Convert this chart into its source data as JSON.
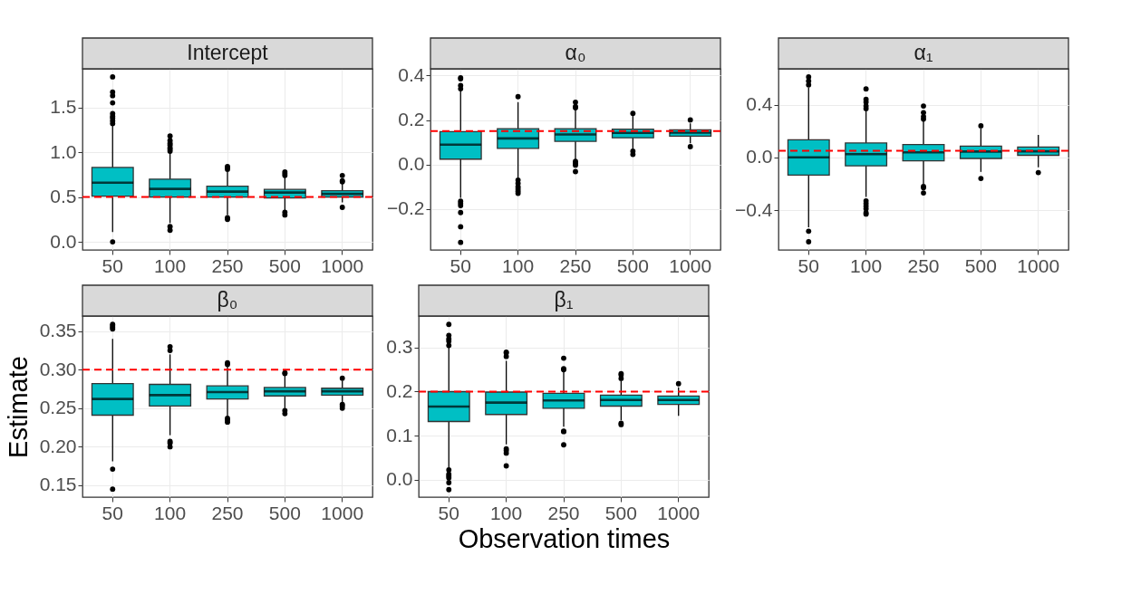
{
  "chart_data": [
    {
      "type": "box",
      "title": "Intercept",
      "categories": [
        "50",
        "100",
        "250",
        "500",
        "1000"
      ],
      "ylim": [
        -0.09,
        1.93
      ],
      "yticks": [
        {
          "value": 0,
          "label": "0.0"
        },
        0.5,
        {
          "value": 1,
          "label": "1.0"
        },
        1.5
      ],
      "grid": true,
      "ref_lines": [
        {
          "axis": "y",
          "value": 0.5,
          "color": "#ff0000",
          "line_style": "dashed"
        }
      ],
      "series": [
        {
          "color": "#00bfc4",
          "boxes": [
            {
              "low": 0.11,
              "q1": 0.51,
              "median": 0.66,
              "q3": 0.83,
              "high": 1.31,
              "outliers": [
                0.0,
                1.32,
                1.35,
                1.38,
                1.4,
                1.43,
                1.55,
                1.63,
                1.67,
                1.84
              ]
            },
            {
              "low": 0.21,
              "q1": 0.5,
              "median": 0.59,
              "q3": 0.7,
              "high": 0.99,
              "outliers": [
                0.13,
                0.17,
                1.01,
                1.03,
                1.05,
                1.08,
                1.1,
                1.13,
                1.18
              ]
            },
            {
              "low": 0.3,
              "q1": 0.5,
              "median": 0.56,
              "q3": 0.62,
              "high": 0.8,
              "outliers": [
                0.25,
                0.27,
                0.81,
                0.83,
                0.84
              ]
            },
            {
              "low": 0.35,
              "q1": 0.49,
              "median": 0.55,
              "q3": 0.585,
              "high": 0.73,
              "outliers": [
                0.3,
                0.33,
                0.74,
                0.76,
                0.78
              ]
            },
            {
              "low": 0.44,
              "q1": 0.5,
              "median": 0.535,
              "q3": 0.57,
              "high": 0.66,
              "outliers": [
                0.385,
                0.67,
                0.68,
                0.74
              ]
            }
          ]
        }
      ]
    },
    {
      "type": "box",
      "title": "α₀",
      "categories": [
        "50",
        "100",
        "250",
        "500",
        "1000"
      ],
      "ylim": [
        -0.384,
        0.43
      ],
      "yticks": [
        {
          "value": -0.2,
          "label": "−0.2"
        },
        {
          "value": 0,
          "label": "0.0"
        },
        0.2,
        0.4
      ],
      "grid": true,
      "ref_lines": [
        {
          "axis": "y",
          "value": 0.15,
          "color": "#ff0000",
          "line_style": "dashed"
        }
      ],
      "series": [
        {
          "color": "#00bfc4",
          "boxes": [
            {
              "low": -0.15,
              "q1": 0.024,
              "median": 0.089,
              "q3": 0.148,
              "high": 0.33,
              "outliers": [
                -0.35,
                -0.28,
                -0.216,
                -0.185,
                -0.175,
                -0.165,
                0.34,
                0.355,
                0.385,
                0.39
              ]
            },
            {
              "low": -0.06,
              "q1": 0.072,
              "median": 0.117,
              "q3": 0.161,
              "high": 0.28,
              "outliers": [
                -0.13,
                -0.12,
                -0.11,
                -0.1,
                -0.085,
                -0.07,
                0.305
              ]
            },
            {
              "low": 0.02,
              "q1": 0.104,
              "median": 0.135,
              "q3": 0.161,
              "high": 0.25,
              "outliers": [
                -0.032,
                -0.003,
                0.005,
                0.014,
                0.255,
                0.26,
                0.28
              ]
            },
            {
              "low": 0.07,
              "q1": 0.12,
              "median": 0.142,
              "q3": 0.159,
              "high": 0.22,
              "outliers": [
                0.045,
                0.06,
                0.23
              ]
            },
            {
              "low": 0.095,
              "q1": 0.127,
              "median": 0.143,
              "q3": 0.156,
              "high": 0.185,
              "outliers": [
                0.08,
                0.2
              ]
            }
          ]
        }
      ]
    },
    {
      "type": "box",
      "title": "α₁",
      "categories": [
        "50",
        "100",
        "250",
        "500",
        "1000"
      ],
      "ylim": [
        -0.702,
        0.672
      ],
      "yticks": [
        {
          "value": -0.4,
          "label": "−0.4"
        },
        {
          "value": 0,
          "label": "0.0"
        },
        0.4
      ],
      "grid": true,
      "ref_lines": [
        {
          "axis": "y",
          "value": 0.05,
          "color": "#ff0000",
          "line_style": "dashed"
        }
      ],
      "series": [
        {
          "color": "#00bfc4",
          "boxes": [
            {
              "low": -0.53,
              "q1": -0.135,
              "median": 0.0,
              "q3": 0.133,
              "high": 0.53,
              "outliers": [
                -0.64,
                -0.56,
                0.55,
                0.58,
                0.61
              ]
            },
            {
              "low": -0.3,
              "q1": -0.064,
              "median": 0.024,
              "q3": 0.109,
              "high": 0.36,
              "outliers": [
                -0.43,
                -0.42,
                -0.39,
                -0.37,
                -0.35,
                -0.33,
                0.37,
                0.39,
                0.42,
                0.44,
                0.52
              ]
            },
            {
              "low": -0.2,
              "q1": -0.026,
              "median": 0.038,
              "q3": 0.097,
              "high": 0.28,
              "outliers": [
                -0.27,
                -0.23,
                -0.22,
                0.29,
                0.31,
                0.34,
                0.39
              ]
            },
            {
              "low": -0.11,
              "q1": -0.008,
              "median": 0.044,
              "q3": 0.085,
              "high": 0.22,
              "outliers": [
                -0.16,
                0.24
              ]
            },
            {
              "low": -0.075,
              "q1": 0.016,
              "median": 0.046,
              "q3": 0.078,
              "high": 0.17,
              "outliers": [
                -0.115
              ]
            }
          ]
        }
      ]
    },
    {
      "type": "box",
      "title": "β₀",
      "ylabel": "Estimate",
      "categories": [
        "50",
        "100",
        "250",
        "500",
        "1000"
      ],
      "ylim": [
        0.1346,
        0.3698
      ],
      "yticks": [
        0.15,
        {
          "value": 0.2,
          "label": "0.20"
        },
        0.25,
        {
          "value": 0.3,
          "label": "0.30"
        },
        0.35
      ],
      "grid": true,
      "ref_lines": [
        {
          "axis": "y",
          "value": 0.3,
          "color": "#ff0000",
          "line_style": "dashed"
        }
      ],
      "series": [
        {
          "color": "#00bfc4",
          "boxes": [
            {
              "low": 0.181,
              "q1": 0.241,
              "median": 0.262,
              "q3": 0.282,
              "high": 0.34,
              "outliers": [
                0.145,
                0.171,
                0.353,
                0.355,
                0.357,
                0.359
              ]
            },
            {
              "low": 0.215,
              "q1": 0.253,
              "median": 0.267,
              "q3": 0.281,
              "high": 0.32,
              "outliers": [
                0.2,
                0.205,
                0.207,
                0.325,
                0.33
              ]
            },
            {
              "low": 0.24,
              "q1": 0.262,
              "median": 0.271,
              "q3": 0.279,
              "high": 0.304,
              "outliers": [
                0.232,
                0.235,
                0.237,
                0.307,
                0.309
              ]
            },
            {
              "low": 0.25,
              "q1": 0.266,
              "median": 0.272,
              "q3": 0.277,
              "high": 0.293,
              "outliers": [
                0.243,
                0.247,
                0.295,
                0.296
              ]
            },
            {
              "low": 0.258,
              "q1": 0.267,
              "median": 0.272,
              "q3": 0.276,
              "high": 0.286,
              "outliers": [
                0.25,
                0.253,
                0.255,
                0.289
              ]
            }
          ]
        }
      ]
    },
    {
      "type": "box",
      "title": "β₁",
      "xlabel": "Observation times",
      "categories": [
        "50",
        "100",
        "250",
        "500",
        "1000"
      ],
      "ylim": [
        -0.04,
        0.372
      ],
      "yticks": [
        {
          "value": 0,
          "label": "0.0"
        },
        0.1,
        0.2,
        0.3
      ],
      "grid": true,
      "ref_lines": [
        {
          "axis": "y",
          "value": 0.2,
          "color": "#ff0000",
          "line_style": "dashed"
        }
      ],
      "series": [
        {
          "color": "#00bfc4",
          "boxes": [
            {
              "low": 0.027,
              "q1": 0.132,
              "median": 0.166,
              "q3": 0.2,
              "high": 0.3,
              "outliers": [
                -0.023,
                -0.007,
                0.004,
                0.008,
                0.012,
                0.022,
                0.305,
                0.315,
                0.32,
                0.328,
                0.353
              ]
            },
            {
              "low": 0.08,
              "q1": 0.148,
              "median": 0.175,
              "q3": 0.199,
              "high": 0.27,
              "outliers": [
                0.031,
                0.06,
                0.066,
                0.07,
                0.28,
                0.288,
                0.29
              ]
            },
            {
              "low": 0.12,
              "q1": 0.162,
              "median": 0.18,
              "q3": 0.196,
              "high": 0.245,
              "outliers": [
                0.079,
                0.109,
                0.11,
                0.25,
                0.252,
                0.276
              ]
            },
            {
              "low": 0.135,
              "q1": 0.167,
              "median": 0.181,
              "q3": 0.192,
              "high": 0.225,
              "outliers": [
                0.125,
                0.128,
                0.23,
                0.238,
                0.241
              ]
            },
            {
              "low": 0.145,
              "q1": 0.171,
              "median": 0.181,
              "q3": 0.19,
              "high": 0.21,
              "outliers": [
                0.218
              ]
            }
          ]
        }
      ]
    }
  ]
}
